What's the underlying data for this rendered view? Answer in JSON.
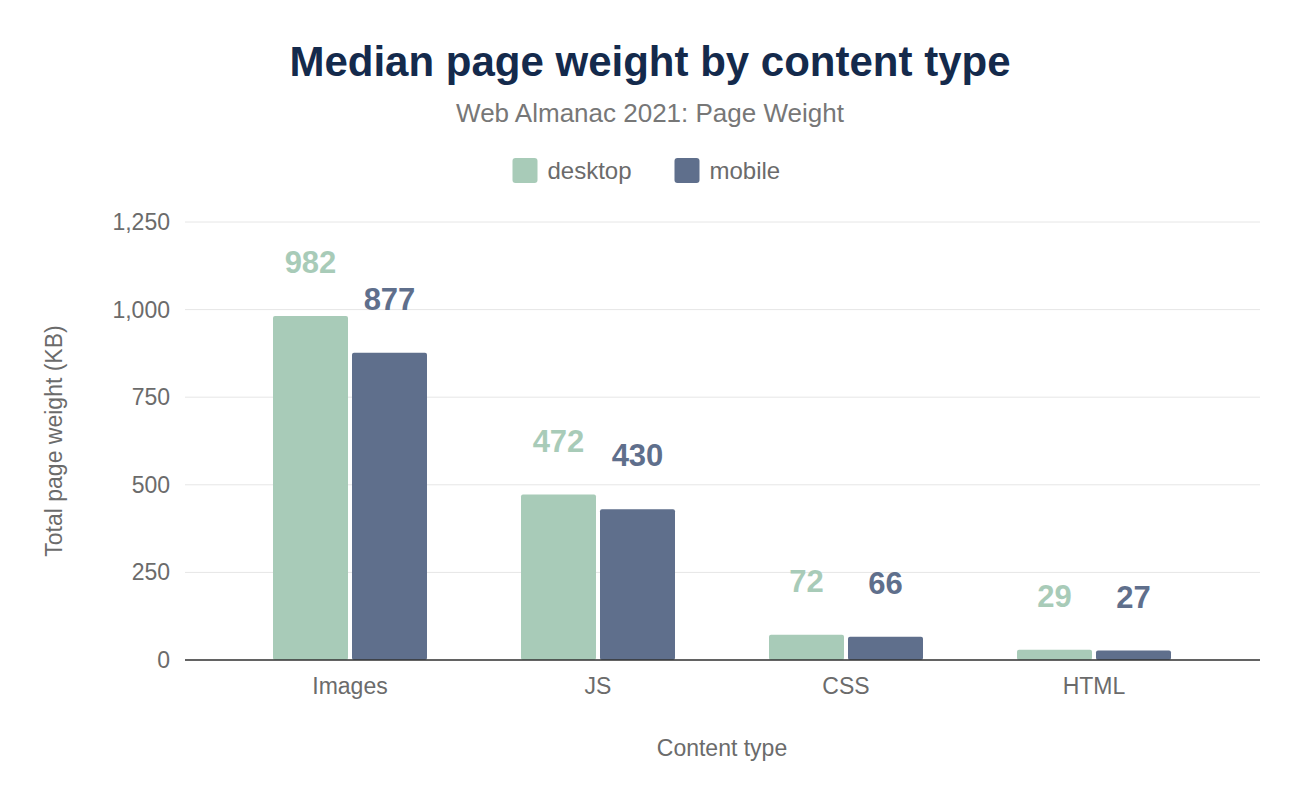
{
  "chart_data": {
    "type": "bar",
    "title": "Median page weight by content type",
    "subtitle": "Web Almanac 2021: Page Weight",
    "x_label": "Content type",
    "y_label": "Total page weight (KB)",
    "categories": [
      "Images",
      "JS",
      "CSS",
      "HTML"
    ],
    "series": [
      {
        "name": "desktop",
        "color": "#a8cbb8",
        "values": [
          982,
          472,
          72,
          29
        ]
      },
      {
        "name": "mobile",
        "color": "#5f6f8c",
        "values": [
          877,
          430,
          66,
          27
        ]
      }
    ],
    "ylim": [
      0,
      1250
    ],
    "yticks": [
      0,
      250,
      500,
      750,
      {
        "value": 1000,
        "label": "1,000"
      },
      {
        "value": 1250,
        "label": "1,250"
      }
    ],
    "grid": true,
    "data_labels": true,
    "legend": "top"
  }
}
